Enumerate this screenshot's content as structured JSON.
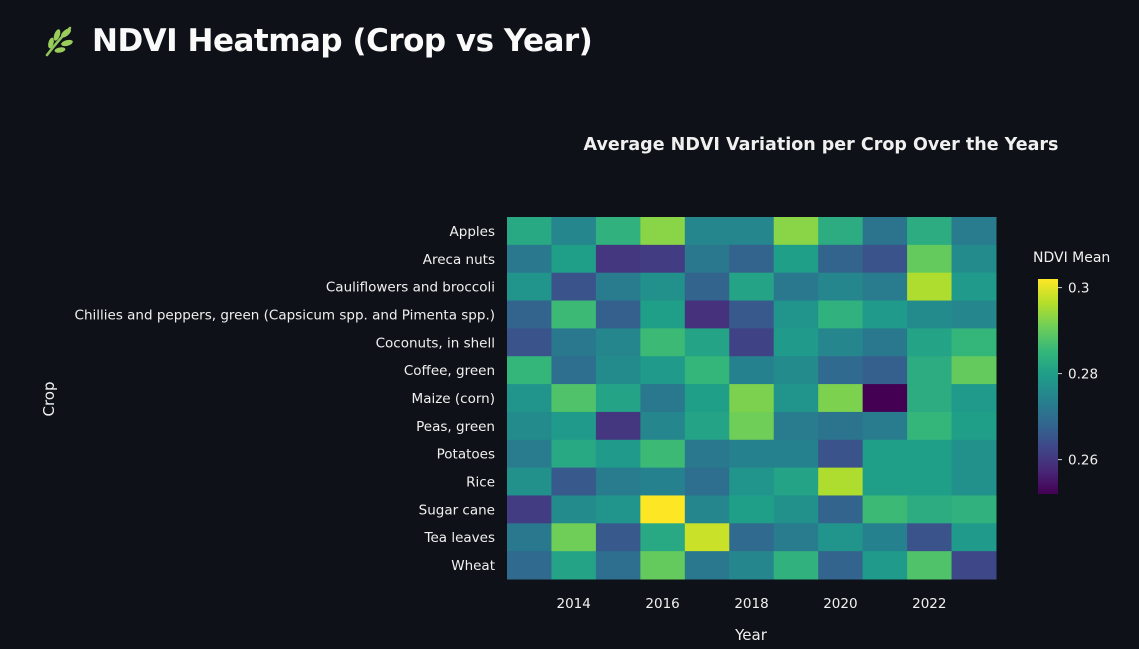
{
  "page": {
    "title": "NDVI Heatmap (Crop vs Year)",
    "icon": "leaf-icon",
    "icon_color": "#9acd5c",
    "background": "#0e1117"
  },
  "chart_data": {
    "type": "heatmap",
    "title": "Average NDVI Variation per Crop Over the Years",
    "xlabel": "Year",
    "ylabel": "Crop",
    "colorbar": {
      "title": "NDVI Mean",
      "colorscale": "viridis",
      "range": [
        0.252,
        0.302
      ],
      "tickvals": [
        0.26,
        0.28,
        0.3
      ],
      "ticktext": [
        "0.26",
        "0.28",
        "0.3"
      ]
    },
    "x": [
      2013,
      2014,
      2015,
      2016,
      2017,
      2018,
      2019,
      2020,
      2021,
      2022,
      2023
    ],
    "x_tickvals": [
      2014,
      2016,
      2018,
      2020,
      2022
    ],
    "x_ticktext": [
      "2014",
      "2016",
      "2018",
      "2020",
      "2022"
    ],
    "y": [
      "Apples",
      "Areca nuts",
      "Cauliflowers and broccoli",
      "Chillies and peppers, green (Capsicum spp. and Pimenta spp.)",
      "Coconuts, in shell",
      "Coffee, green",
      "Maize (corn)",
      "Peas, green",
      "Potatoes",
      "Rice",
      "Sugar cane",
      "Tea leaves",
      "Wheat"
    ],
    "z": [
      [
        0.282,
        0.275,
        0.284,
        0.293,
        0.275,
        0.275,
        0.293,
        0.283,
        0.271,
        0.283,
        0.273
      ],
      [
        0.272,
        0.28,
        0.26,
        0.261,
        0.272,
        0.268,
        0.28,
        0.268,
        0.265,
        0.29,
        0.276
      ],
      [
        0.278,
        0.265,
        0.273,
        0.277,
        0.268,
        0.281,
        0.272,
        0.275,
        0.273,
        0.296,
        0.279
      ],
      [
        0.268,
        0.286,
        0.267,
        0.28,
        0.259,
        0.266,
        0.278,
        0.284,
        0.279,
        0.276,
        0.275
      ],
      [
        0.265,
        0.272,
        0.275,
        0.286,
        0.281,
        0.262,
        0.279,
        0.275,
        0.272,
        0.281,
        0.285
      ],
      [
        0.285,
        0.27,
        0.276,
        0.279,
        0.285,
        0.274,
        0.276,
        0.269,
        0.267,
        0.283,
        0.29
      ],
      [
        0.278,
        0.288,
        0.281,
        0.272,
        0.28,
        0.292,
        0.278,
        0.292,
        0.252,
        0.283,
        0.279
      ],
      [
        0.276,
        0.279,
        0.26,
        0.275,
        0.281,
        0.291,
        0.273,
        0.271,
        0.273,
        0.285,
        0.28
      ],
      [
        0.273,
        0.282,
        0.279,
        0.286,
        0.272,
        0.274,
        0.274,
        0.265,
        0.28,
        0.28,
        0.277
      ],
      [
        0.277,
        0.266,
        0.273,
        0.274,
        0.27,
        0.278,
        0.281,
        0.296,
        0.28,
        0.28,
        0.277
      ],
      [
        0.261,
        0.276,
        0.278,
        0.302,
        0.275,
        0.28,
        0.277,
        0.268,
        0.286,
        0.283,
        0.284
      ],
      [
        0.272,
        0.291,
        0.266,
        0.282,
        0.298,
        0.269,
        0.273,
        0.278,
        0.274,
        0.265,
        0.279
      ],
      [
        0.269,
        0.281,
        0.27,
        0.29,
        0.272,
        0.275,
        0.284,
        0.268,
        0.279,
        0.288,
        0.263
      ]
    ]
  }
}
